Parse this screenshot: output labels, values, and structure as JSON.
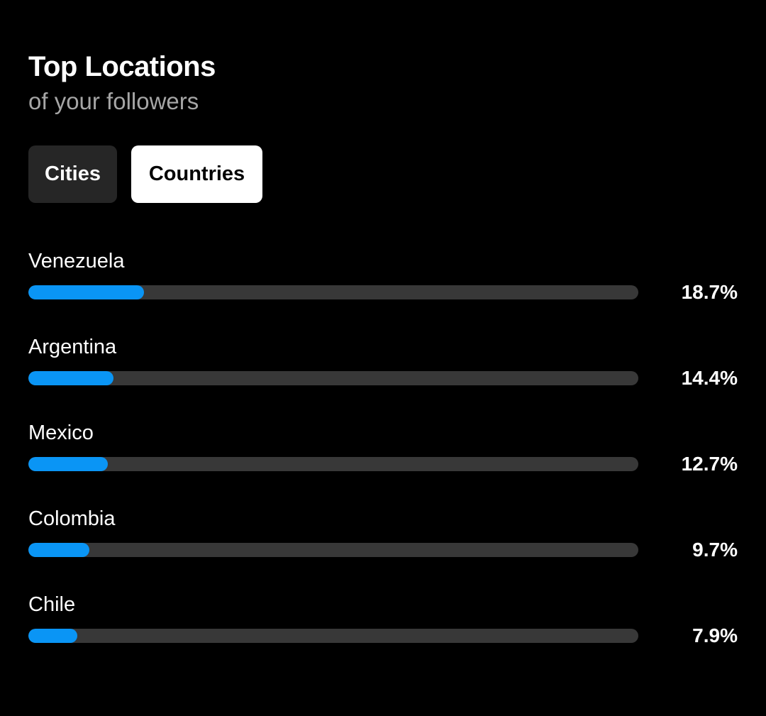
{
  "header": {
    "title": "Top Locations",
    "subtitle": "of your followers"
  },
  "tabs": [
    {
      "label": "Cities",
      "selected": false
    },
    {
      "label": "Countries",
      "selected": true
    }
  ],
  "locations": [
    {
      "name": "Venezuela",
      "percent_label": "18.7%",
      "bar_fraction": 0.19
    },
    {
      "name": "Argentina",
      "percent_label": "14.4%",
      "bar_fraction": 0.14
    },
    {
      "name": "Mexico",
      "percent_label": "12.7%",
      "bar_fraction": 0.13
    },
    {
      "name": "Colombia",
      "percent_label": "9.7%",
      "bar_fraction": 0.1
    },
    {
      "name": "Chile",
      "percent_label": "7.9%",
      "bar_fraction": 0.08
    }
  ],
  "colors": {
    "background": "#000000",
    "bar_fill": "#0a95f5",
    "bar_track": "#383838",
    "subtitle": "#a6a6a6",
    "tab_inactive_bg": "#262626",
    "tab_active_bg": "#ffffff"
  }
}
